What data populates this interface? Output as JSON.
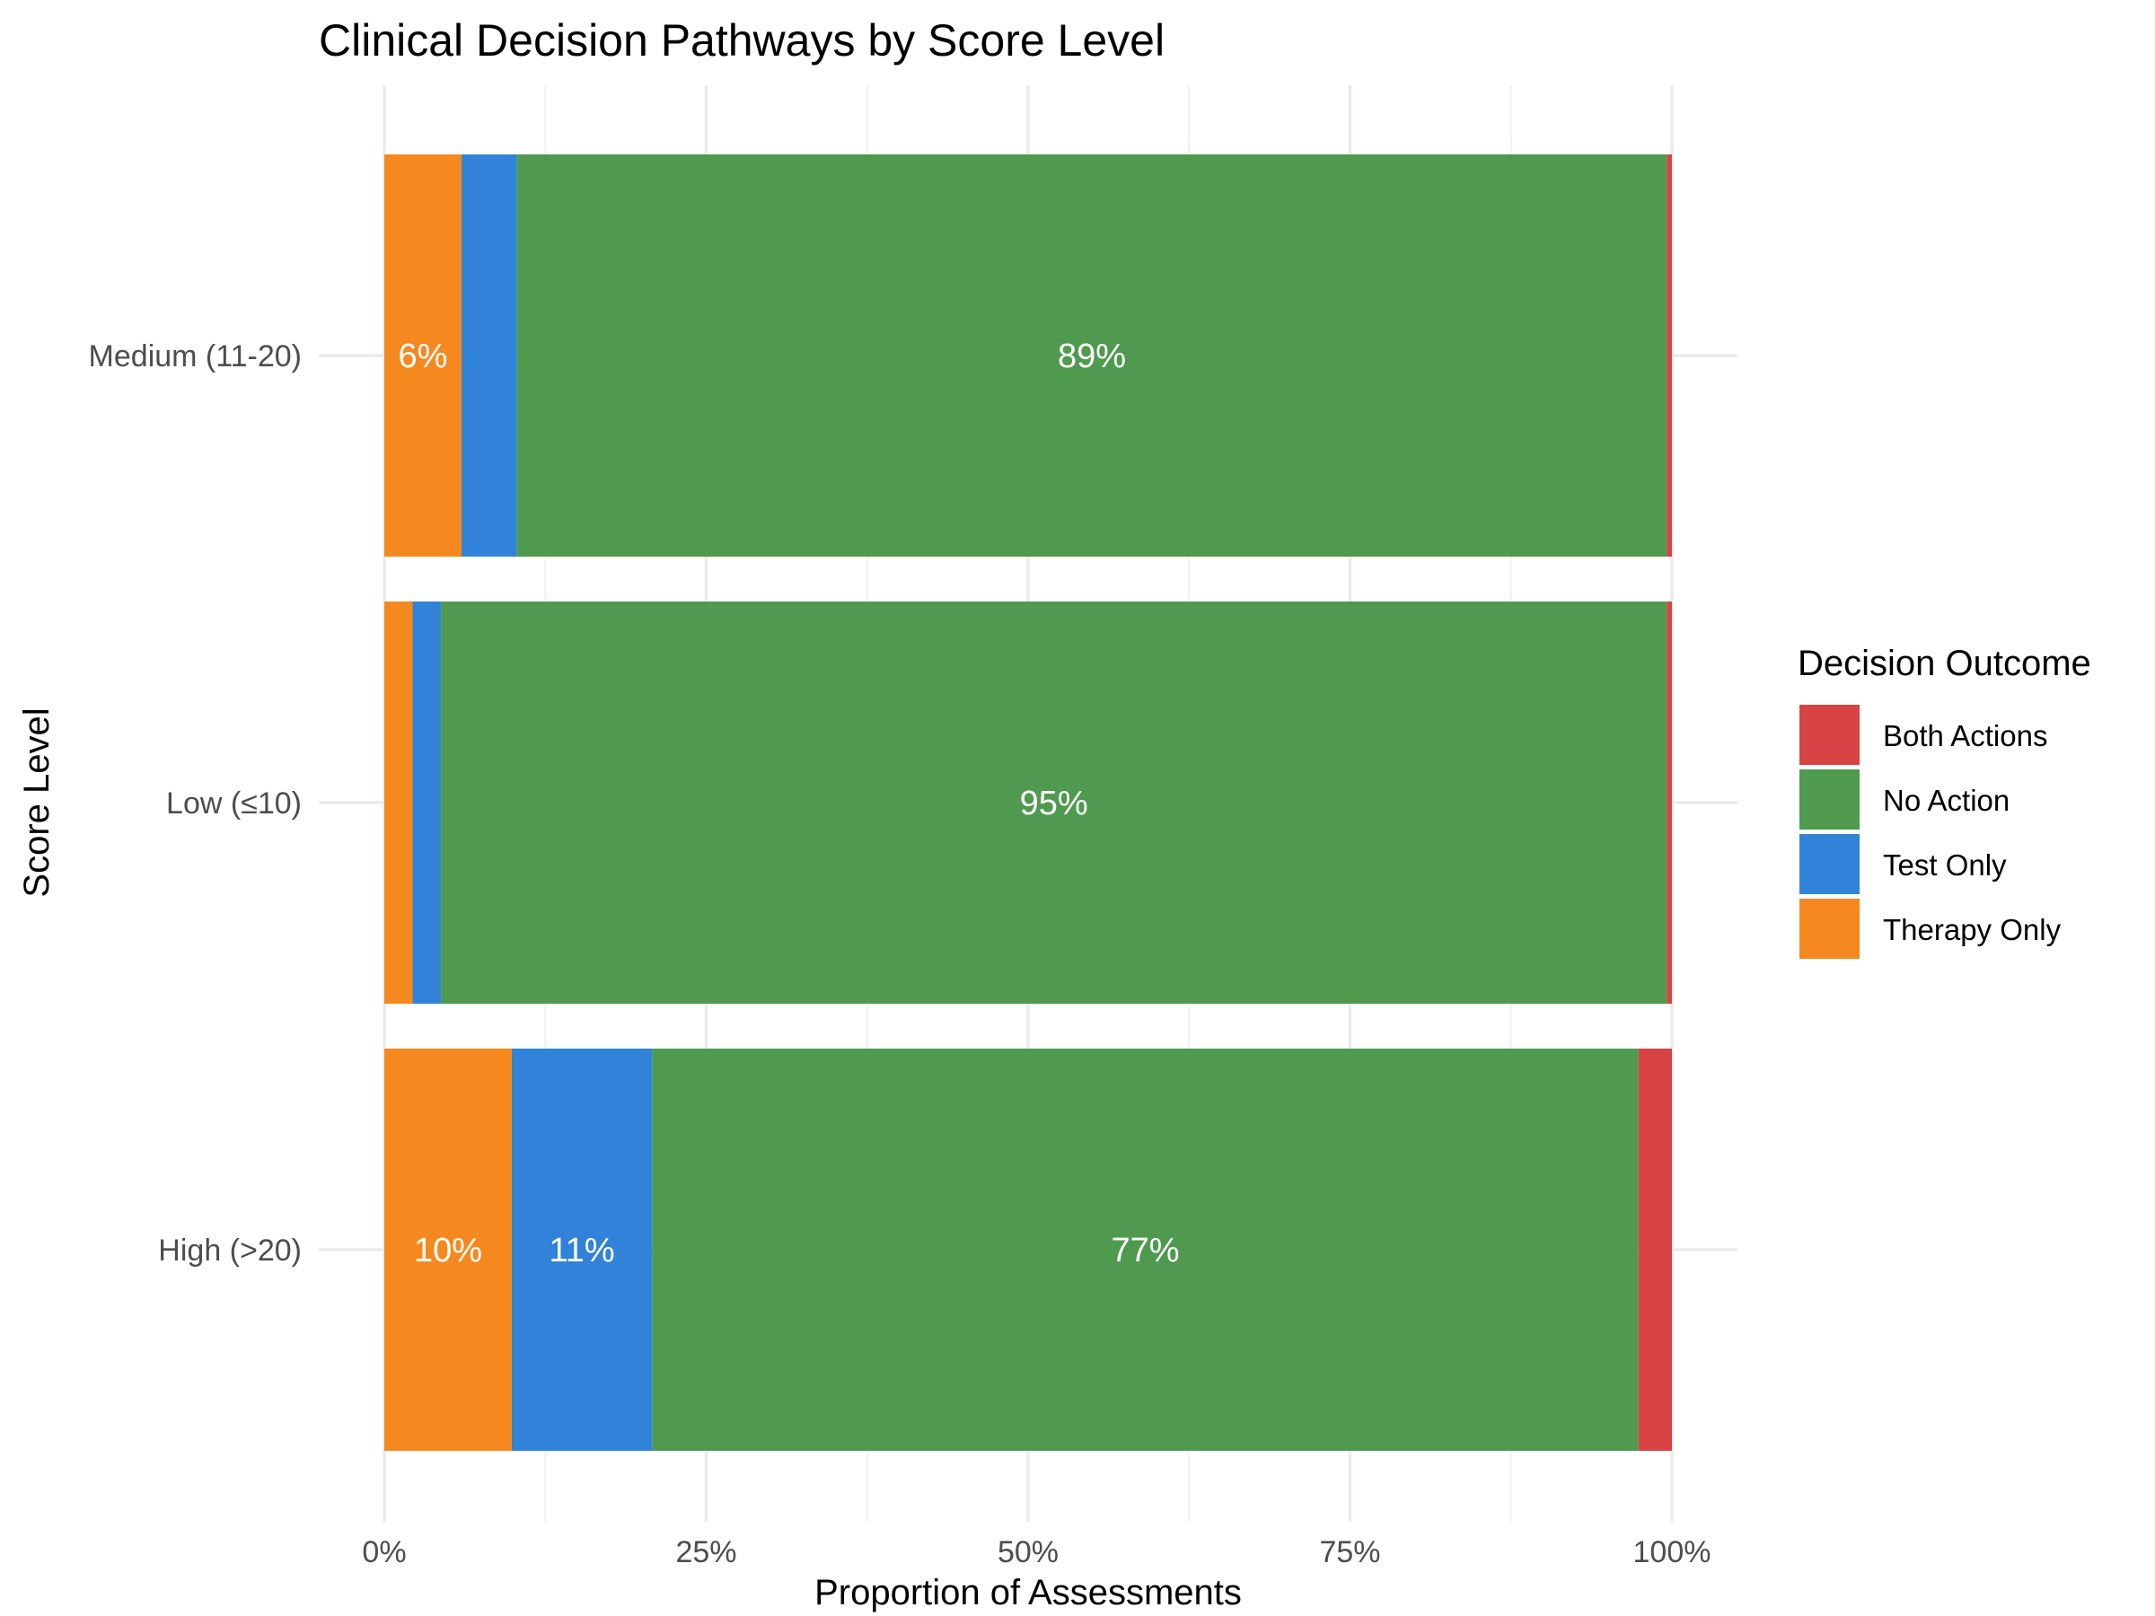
{
  "chart_data": {
    "type": "bar",
    "orientation": "horizontal",
    "stacked": "percent",
    "title": "Clinical Decision Pathways by Score Level",
    "xlabel": "Proportion of Assessments",
    "ylabel": "Score Level",
    "xlim": [
      0,
      1
    ],
    "x_ticks": [
      0,
      0.25,
      0.5,
      0.75,
      1.0
    ],
    "x_tick_labels": [
      "0%",
      "25%",
      "50%",
      "75%",
      "100%"
    ],
    "grid": true,
    "categories": [
      "Medium (11-20)",
      "Low (≤10)",
      "High (>20)"
    ],
    "series": [
      {
        "name": "Therapy Only",
        "color": "#F5891F",
        "values": [
          0.06,
          0.022,
          0.099
        ]
      },
      {
        "name": "Test Only",
        "color": "#3182D9",
        "values": [
          0.043,
          0.022,
          0.109
        ]
      },
      {
        "name": "No Action",
        "color": "#4F9A4F",
        "values": [
          0.893,
          0.952,
          0.766
        ]
      },
      {
        "name": "Both Actions",
        "color": "#D84444",
        "values": [
          0.004,
          0.004,
          0.026
        ]
      }
    ],
    "data_labels": [
      [
        "6%",
        "",
        "89%",
        ""
      ],
      [
        "",
        "",
        "95%",
        ""
      ],
      [
        "10%",
        "11%",
        "77%",
        ""
      ]
    ],
    "legend": {
      "title": "Decision Outcome",
      "position": "right",
      "order": [
        "Both Actions",
        "No Action",
        "Test Only",
        "Therapy Only"
      ]
    }
  }
}
